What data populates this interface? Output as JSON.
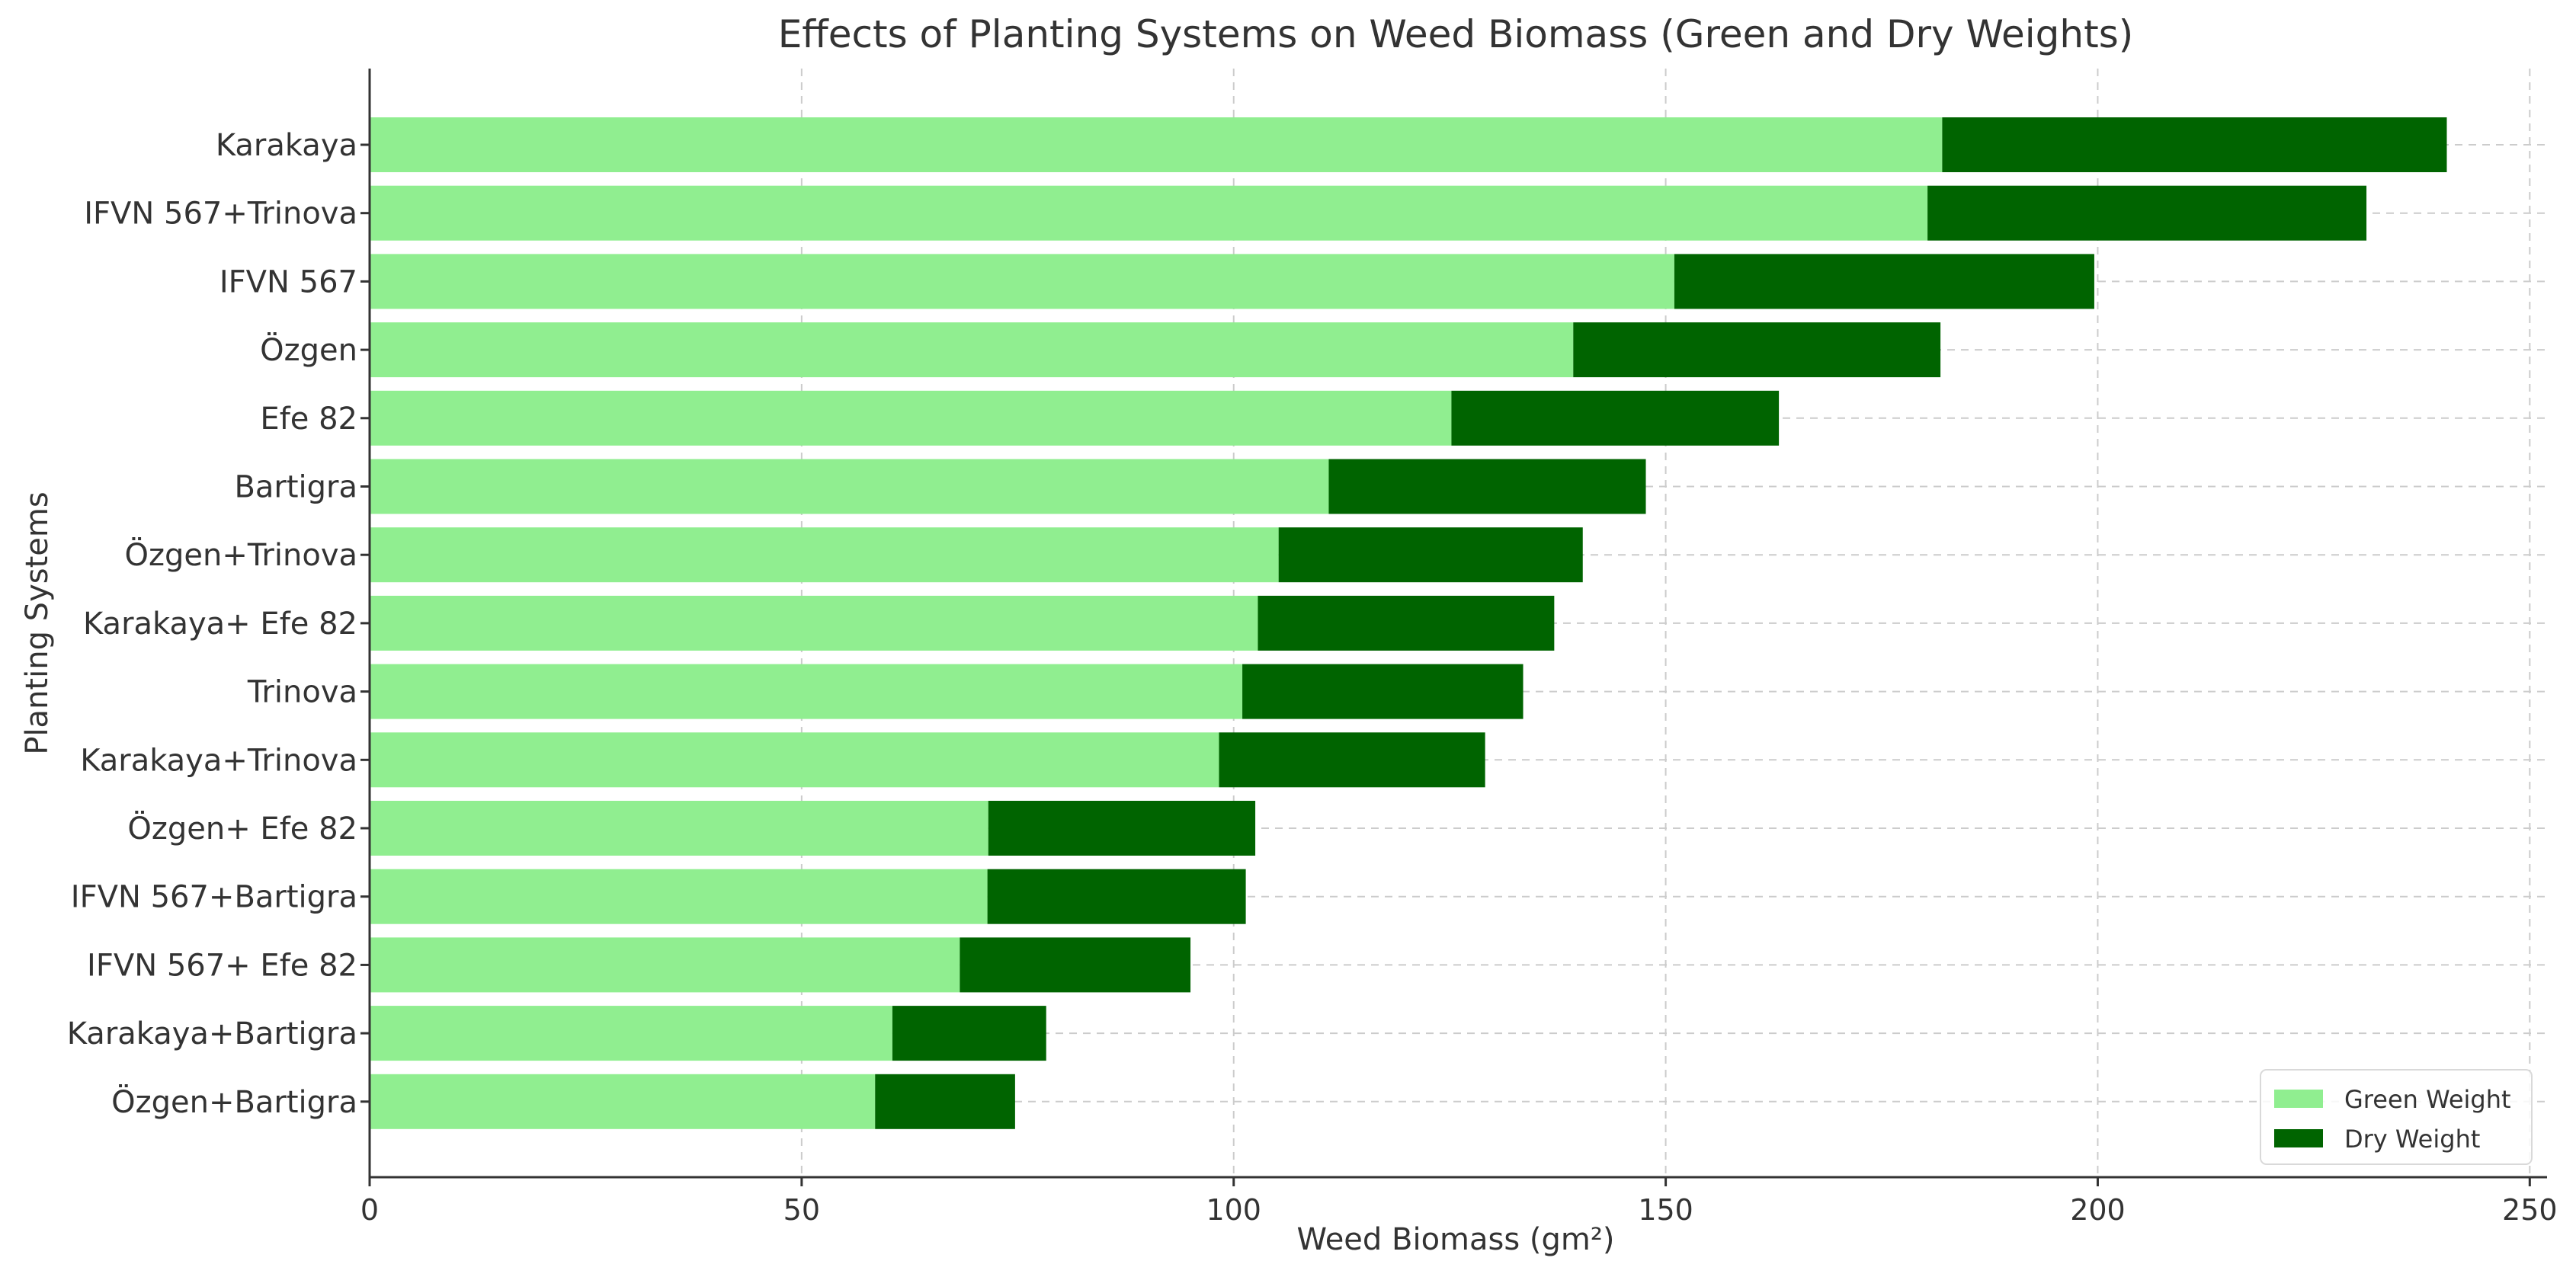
{
  "chart_data": {
    "type": "bar",
    "orientation": "horizontal",
    "stacked": true,
    "title": "Effects of Planting Systems on Weed Biomass (Green and Dry Weights)",
    "xlabel": "Weed Biomass (gm²)",
    "ylabel": "Planting Systems",
    "xlim": [
      0,
      252
    ],
    "xticks": [
      0,
      50,
      100,
      150,
      200,
      250
    ],
    "grid": true,
    "legend_position": "bottom-right",
    "categories": [
      "Karakaya",
      "IFVN 567+Trinova",
      "IFVN 567",
      "Özgen",
      "Efe 82",
      "Bartigra",
      "Özgen+Trinova",
      "Karakaya+ Efe 82",
      "Trinova",
      "Karakaya+Trinova",
      "Özgen+ Efe 82",
      "IFVN 567+Bartigra",
      "IFVN 567+ Efe 82",
      "Karakaya+Bartigra",
      "Özgen+Bartigra"
    ],
    "series": [
      {
        "name": "Green Weight",
        "color": "#90ee90",
        "values": [
          182,
          180.3,
          151,
          139.3,
          125.2,
          111,
          105.2,
          102.8,
          101,
          98.3,
          71.6,
          71.5,
          68.3,
          60.5,
          58.5
        ]
      },
      {
        "name": "Dry Weight",
        "color": "#006400",
        "values": [
          58.4,
          50.8,
          48.6,
          42.5,
          37.9,
          36.7,
          35.2,
          34.3,
          32.5,
          30.8,
          30.9,
          29.9,
          26.7,
          17.8,
          16.2
        ]
      }
    ]
  }
}
